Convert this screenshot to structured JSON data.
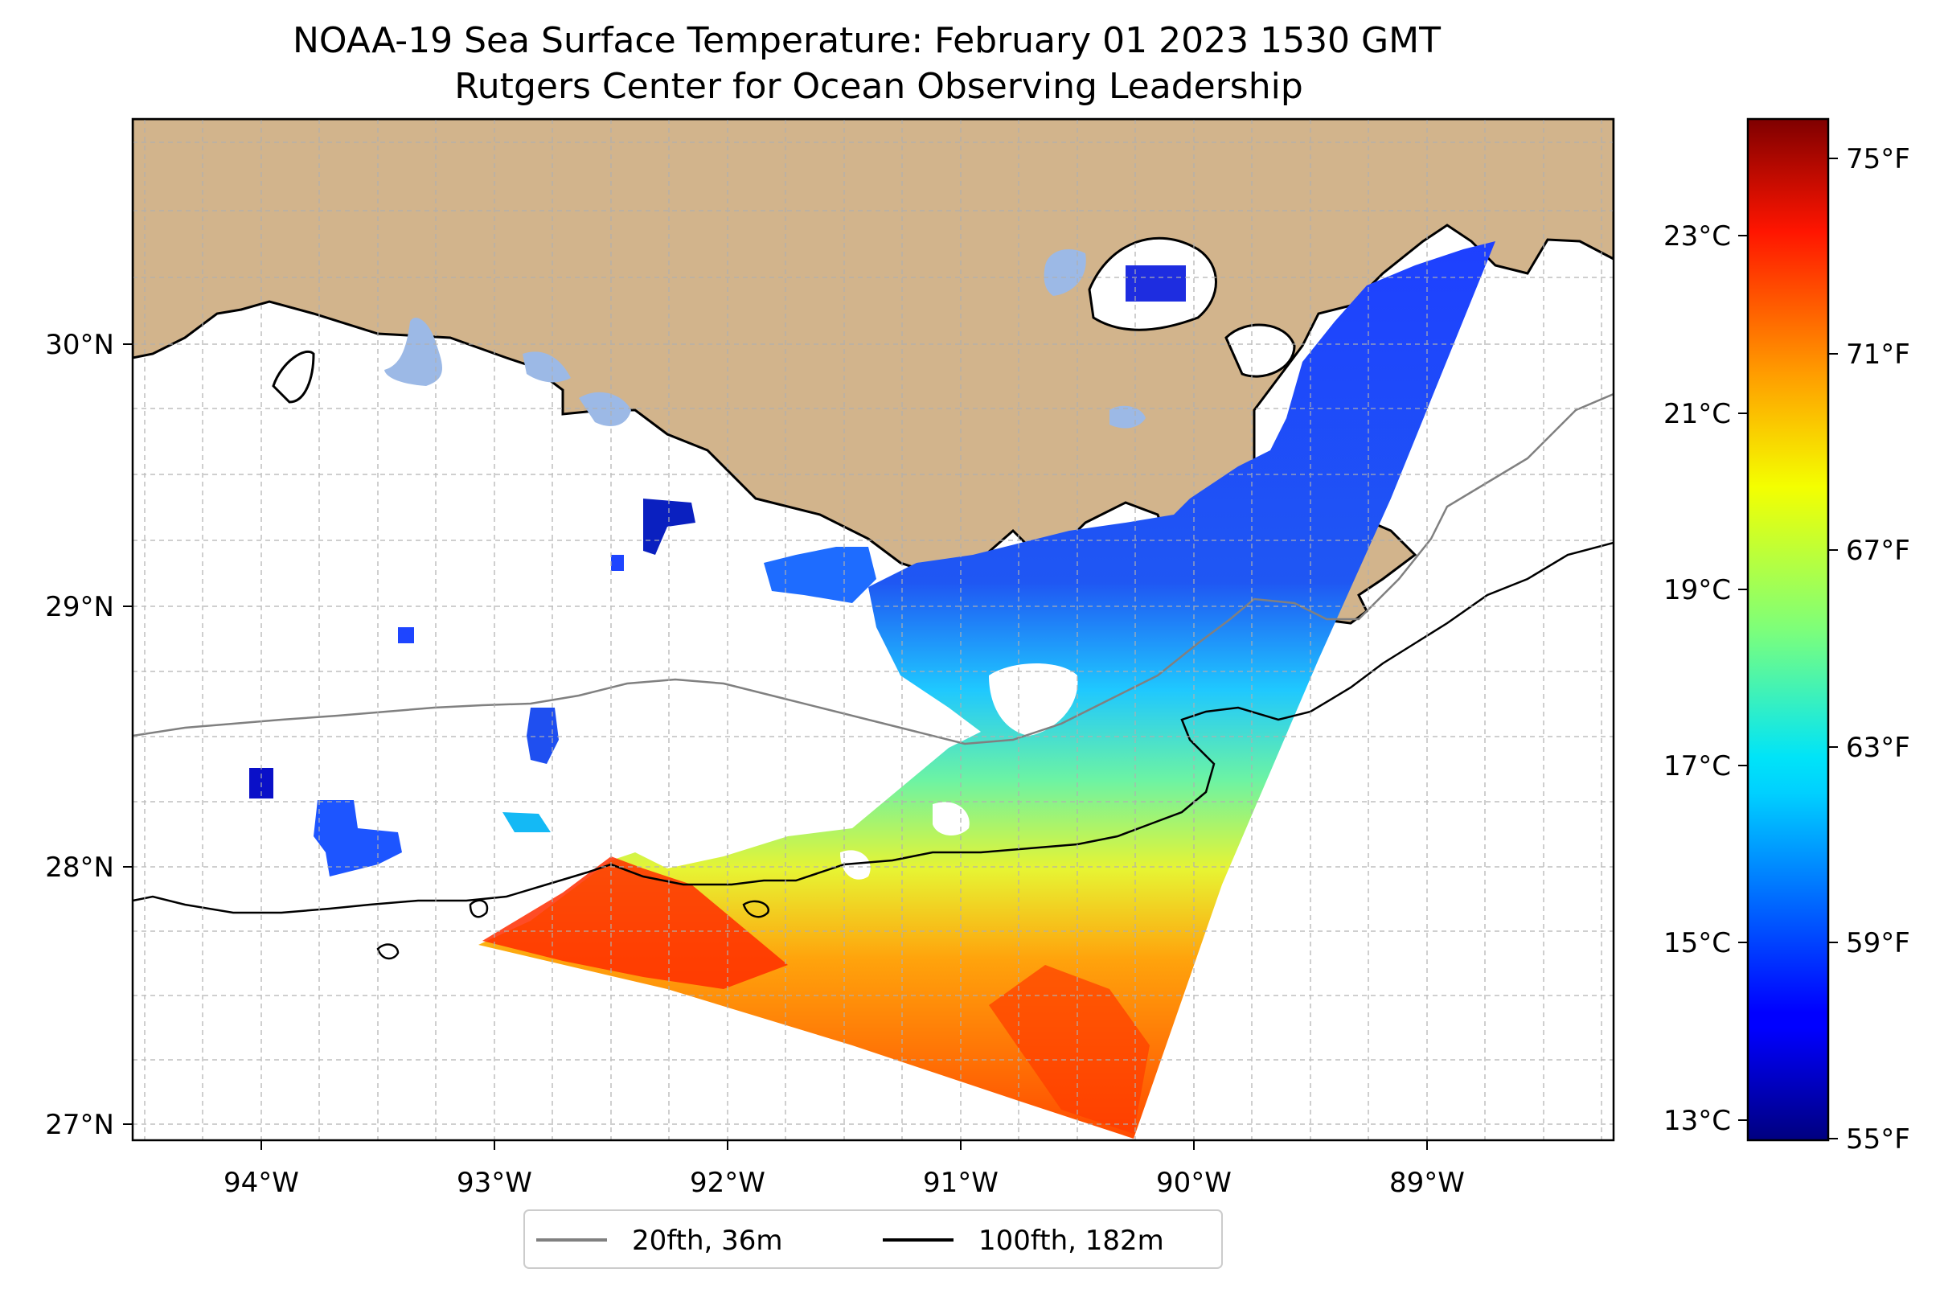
{
  "title": {
    "line1": "NOAA-19 Sea Surface Temperature: February 01 2023 1530 GMT",
    "line2": "Rutgers Center for Ocean Observing Leadership"
  },
  "map": {
    "lon_range": [
      -94.55,
      -88.2
    ],
    "lat_range": [
      26.93,
      30.84
    ],
    "x_ticks": [
      "94°W",
      "93°W",
      "92°W",
      "91°W",
      "90°W",
      "89°W"
    ],
    "y_ticks": [
      "27°N",
      "28°N",
      "29°N",
      "30°N"
    ],
    "land_color": "#d2b48c",
    "lake_color": "#9cb9e6",
    "isobath_20fth_color": "#808080",
    "isobath_100fth_color": "#000000"
  },
  "legend": {
    "items": [
      {
        "label": "20fth, 36m",
        "color": "#808080"
      },
      {
        "label": "100fth, 182m",
        "color": "#000000"
      }
    ]
  },
  "colorbar": {
    "colormap": "jet",
    "celsius_ticks": [
      "13°C",
      "15°C",
      "17°C",
      "19°C",
      "21°C",
      "23°C"
    ],
    "fahrenheit_ticks": [
      "55°F",
      "59°F",
      "63°F",
      "67°F",
      "71°F",
      "75°F"
    ],
    "range_f": [
      55,
      76
    ]
  }
}
